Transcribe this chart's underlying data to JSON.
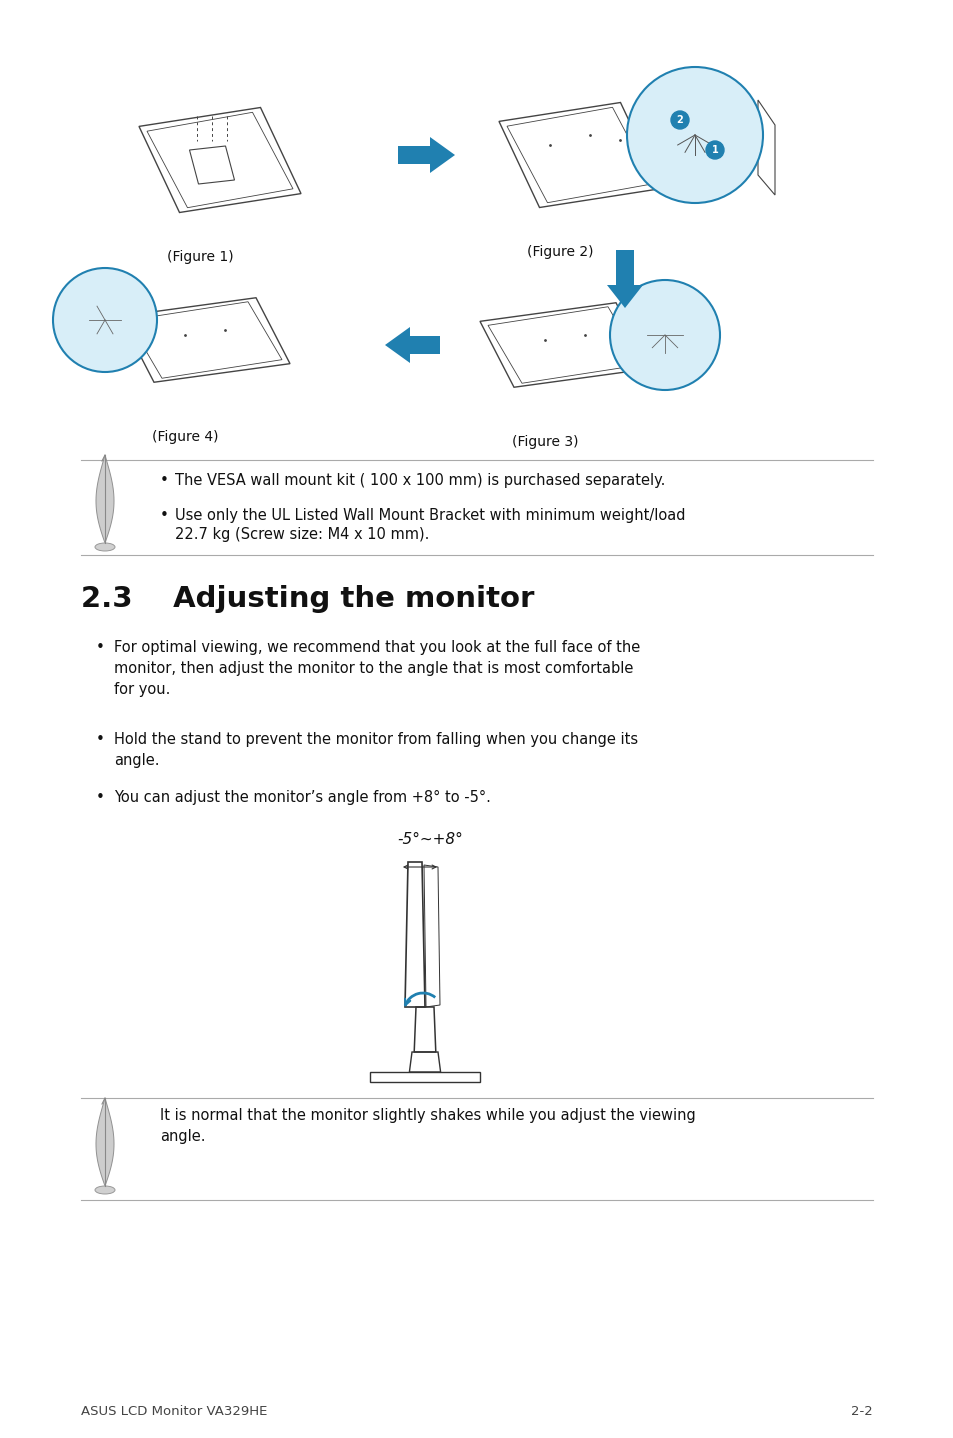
{
  "bg_color": "#ffffff",
  "lm": 0.085,
  "rm": 0.915,
  "section_title": "2.3    Adjusting the monitor",
  "bullet1": "For optimal viewing, we recommend that you look at the full face of the\nmonitor, then adjust the monitor to the angle that is most comfortable\nfor you.",
  "bullet2": "Hold the stand to prevent the monitor from falling when you change its\nangle.",
  "bullet3": "You can adjust the monitor’s angle from +8° to -5°.",
  "angle_label": "-5°~+8°",
  "note1": "The VESA wall mount kit ( 100 x 100 mm) is purchased separately.",
  "note2a": "Use only the UL Listed Wall Mount Bracket with minimum weight/load",
  "note2b": "22.7 kg (Screw size: M4 x 10 mm).",
  "bottom_note": "It is normal that the monitor slightly shakes while you adjust the viewing\nangle.",
  "fig1_label": "(Figure 1)",
  "fig2_label": "(Figure 2)",
  "fig3_label": "(Figure 3)",
  "fig4_label": "(Figure 4)",
  "footer_left": "ASUS LCD Monitor VA329HE",
  "footer_right": "2-2",
  "blue": "#4aafd5",
  "dark_blue": "#2080b0",
  "line_color": "#aaaaaa",
  "text_color": "#111111",
  "fig_color": "#444444"
}
